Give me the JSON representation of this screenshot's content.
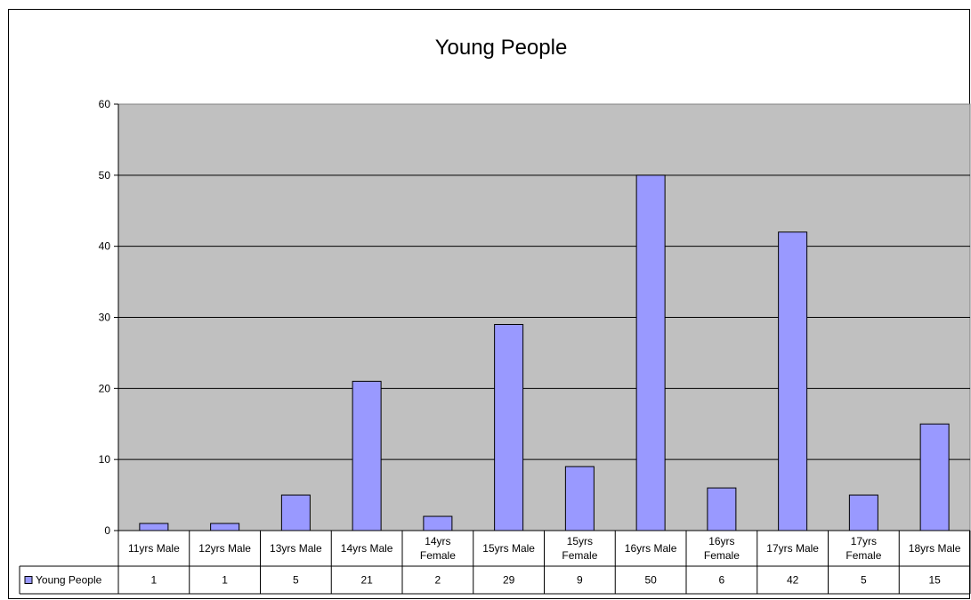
{
  "chart_data": {
    "type": "bar",
    "title": "Young People",
    "categories": [
      "11yrs Male",
      "12yrs Male",
      "13yrs Male",
      "14yrs Male",
      "14yrs Female",
      "15yrs Male",
      "15yrs Female",
      "16yrs Male",
      "16yrs Female",
      "17yrs Male",
      "17yrs Female",
      "18yrs Male"
    ],
    "series": [
      {
        "name": "Young People",
        "values": [
          1,
          1,
          5,
          21,
          2,
          29,
          9,
          50,
          6,
          42,
          5,
          15
        ]
      }
    ],
    "ylim": [
      0,
      60
    ],
    "yticks": [
      0,
      10,
      20,
      30,
      40,
      50,
      60
    ],
    "grid": true,
    "legend": "data-table-left",
    "plot_background": "#c0c0c0",
    "bar_color": "#9999ff"
  }
}
